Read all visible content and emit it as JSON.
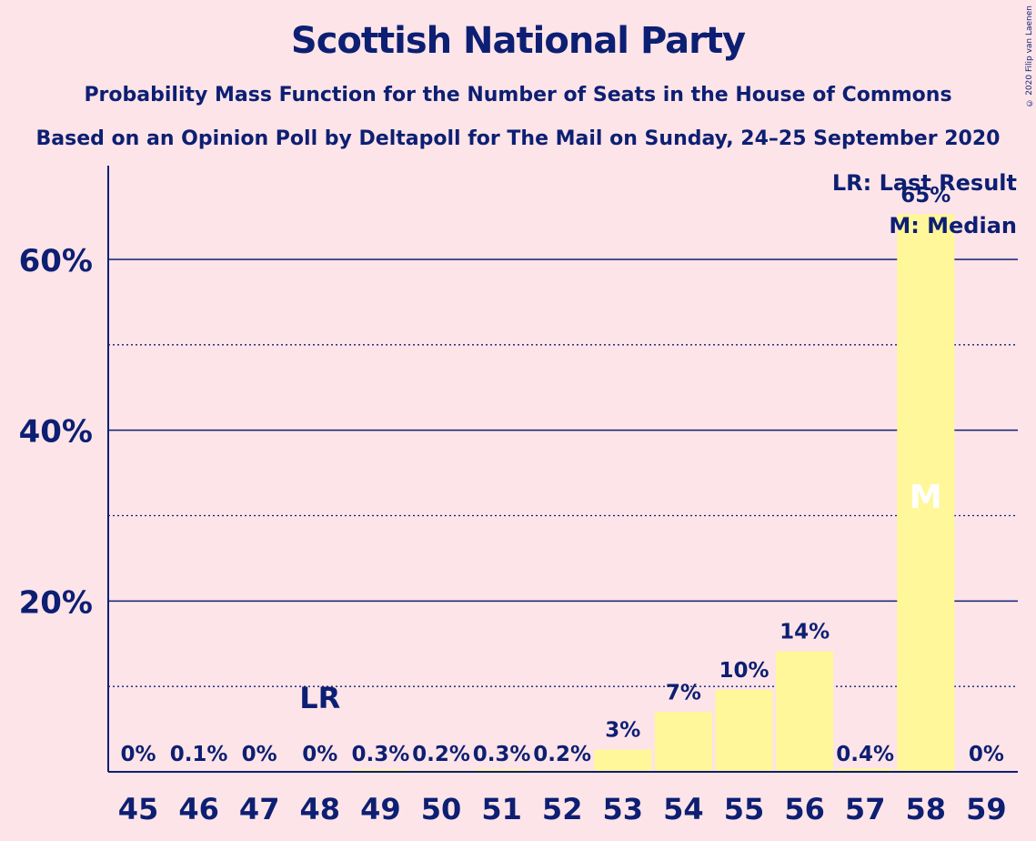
{
  "title": "Scottish National Party",
  "subtitle": "Probability Mass Function for the Number of Seats in the House of Commons",
  "subtitle2": "Based on an Opinion Poll by Deltapoll for The Mail on Sunday, 24–25 September 2020",
  "copyright": "© 2020 Filip van Laenen",
  "legend": {
    "last_result": "LR: Last Result",
    "median": "M: Median"
  },
  "colors": {
    "background": "#fde4e8",
    "bar": "#fff799",
    "text": "#0d1f73",
    "median_marker": "#ffffff"
  },
  "chart_data": {
    "type": "bar",
    "categories": [
      "45",
      "46",
      "47",
      "48",
      "49",
      "50",
      "51",
      "52",
      "53",
      "54",
      "55",
      "56",
      "57",
      "58",
      "59"
    ],
    "values": [
      0,
      0.1,
      0,
      0,
      0.3,
      0.2,
      0.3,
      0.2,
      2.6,
      7.0,
      9.6,
      14.1,
      0.4,
      65.3,
      0
    ],
    "labels": [
      "0%",
      "0.1%",
      "0%",
      "0%",
      "0.3%",
      "0.2%",
      "0.3%",
      "0.2%",
      "3%",
      "7%",
      "10%",
      "14%",
      "0.4%",
      "65%",
      "0%"
    ],
    "ylim": [
      0,
      70
    ],
    "yticks": [
      20,
      40,
      60
    ],
    "ytick_labels": [
      "20%",
      "40%",
      "60%"
    ],
    "minor_gridlines": [
      10,
      30,
      50
    ],
    "grid": true,
    "last_result_category": "48",
    "last_result_label": "LR",
    "median_category": "58",
    "median_label": "M",
    "legend_position": "top-right"
  }
}
